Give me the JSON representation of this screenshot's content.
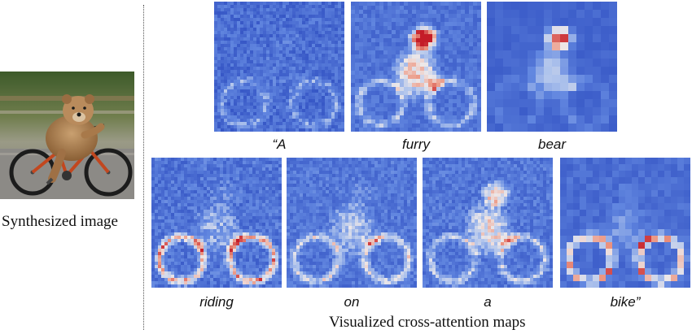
{
  "left": {
    "caption": "Synthesized image"
  },
  "right": {
    "caption": "Visualized cross-attention maps",
    "top_tokens": [
      "“A",
      "furry",
      "bear"
    ],
    "bottom_tokens": [
      "riding",
      "on",
      "a",
      "bike”"
    ]
  }
}
